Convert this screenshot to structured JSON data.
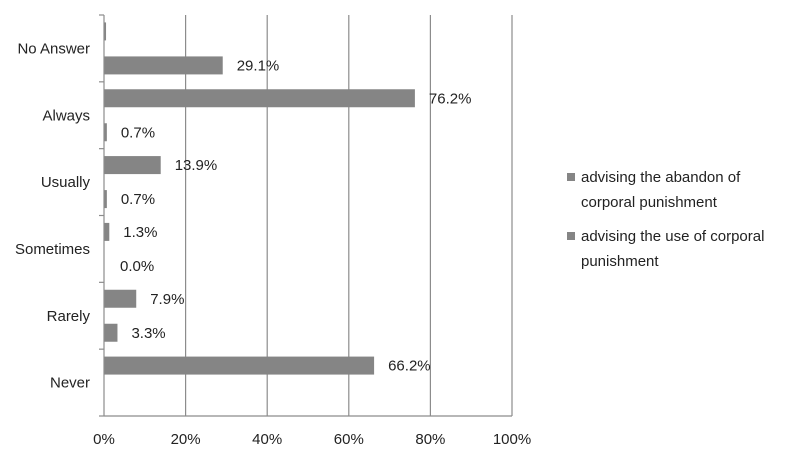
{
  "chart_data": {
    "type": "bar",
    "orientation": "horizontal",
    "categories": [
      "No Answer",
      "Always",
      "Usually",
      "Sometimes",
      "Rarely",
      "Never"
    ],
    "series": [
      {
        "name": "advising  the abandon of corporal punishment",
        "legend_lines": [
          "advising  the abandon of",
          "corporal punishment"
        ],
        "values": [
          0.5,
          76.2,
          13.9,
          1.3,
          7.9,
          66.2
        ],
        "labels": [
          "",
          "76.2%",
          "13.9%",
          "1.3%",
          "7.9%",
          "66.2%"
        ]
      },
      {
        "name": "advising the use of  corporal punishment",
        "legend_lines": [
          "advising the use of  corporal",
          "punishment"
        ],
        "values": [
          29.1,
          0.7,
          0.7,
          0.0,
          3.3,
          0.0
        ],
        "labels": [
          "29.1%",
          "0.7%",
          "0.7%",
          "0.0%",
          "3.3%",
          ""
        ]
      }
    ],
    "xticks": [
      "0%",
      "20%",
      "40%",
      "60%",
      "80%",
      "100%"
    ],
    "xlim": [
      0,
      100
    ],
    "grid": true,
    "legend_position": "right",
    "colors": {
      "bar": "#858585",
      "grid": "#8c8c8c",
      "axis": "#8c8c8c",
      "text": "#222222"
    }
  }
}
